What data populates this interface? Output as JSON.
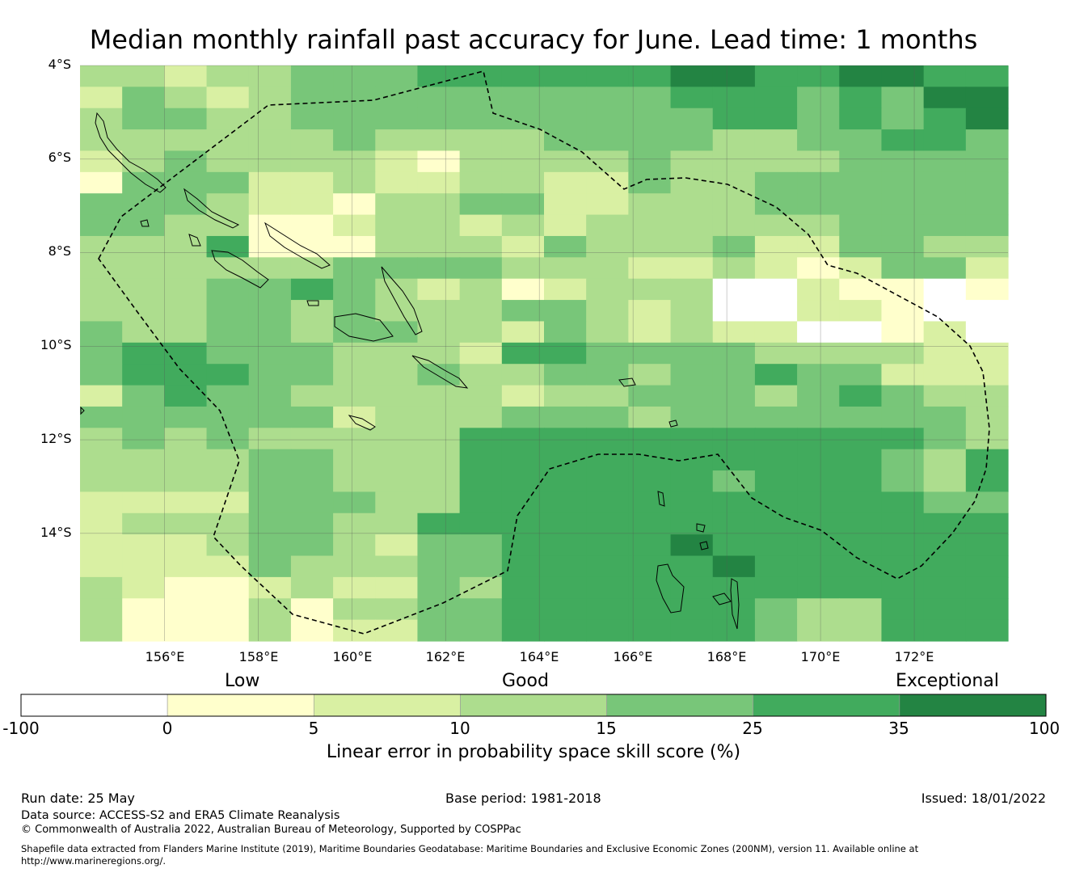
{
  "title": "Median monthly rainfall past accuracy for June. Lead time: 1 months",
  "map": {
    "lat_labels": [
      "4°S",
      "6°S",
      "8°S",
      "10°S",
      "12°S",
      "14°S"
    ],
    "lon_labels": [
      "156°E",
      "158°E",
      "160°E",
      "162°E",
      "164°E",
      "166°E",
      "168°E",
      "170°E",
      "172°E"
    ],
    "lon_range": [
      154.2,
      174.0
    ],
    "lat_range": [
      -4.0,
      -16.3
    ],
    "palette": [
      "#ffffff",
      "#ffffcc",
      "#d9f0a3",
      "#addd8e",
      "#78c679",
      "#41ab5d",
      "#238443"
    ],
    "grid_rows": [
      "3323344455555566556655",
      "2432344444444455545466",
      "3443344444444445545456",
      "3333334333344443344554",
      "2343333213333433334444",
      "1444223223322433444444",
      "4443221334422333444444",
      "4433112332323333334444",
      "3335111333243334224433",
      "3333334444333223212442",
      "3334454323123330021101",
      "3334434333443230022100",
      "4334434433243232200120",
      "4554443332554444333322",
      "4555443343344344544222",
      "2454433333233444345433",
      "4444442333444344444443",
      "3434333335555555555543",
      "3333443335555555555435",
      "3333443335555554555435",
      "2222444335555555555544",
      "2333443355555555555555",
      "2223443244555565555555",
      "2222433344555556555555",
      "3211232243555555555555",
      "3111313344555555433555",
      "3111312244555555433555"
    ]
  },
  "legend": {
    "categories": [
      "Low",
      "Good",
      "Exceptional"
    ],
    "ticks": [
      "-100",
      "0",
      "5",
      "10",
      "15",
      "25",
      "35",
      "100"
    ],
    "title": "Linear error in probability space skill score (%)"
  },
  "footer": {
    "run_date": "Run date: 25 May",
    "base_period": "Base period: 1981-2018",
    "issued": "Issued: 18/01/2022",
    "data_source": "Data source: ACCESS-S2 and ERA5 Climate Reanalysis",
    "copyright": "© Commonwealth of Australia 2022, Australian Bureau of Meteorology, Supported by COSPPac",
    "shapefile_line1": "Shapefile data extracted from Flanders Marine Institute (2019), Maritime Boundaries Geodatabase: Maritime Boundaries and Exclusive Economic Zones (200NM), version 11. Available online at",
    "shapefile_line2": "http://www.marineregions.org/."
  }
}
